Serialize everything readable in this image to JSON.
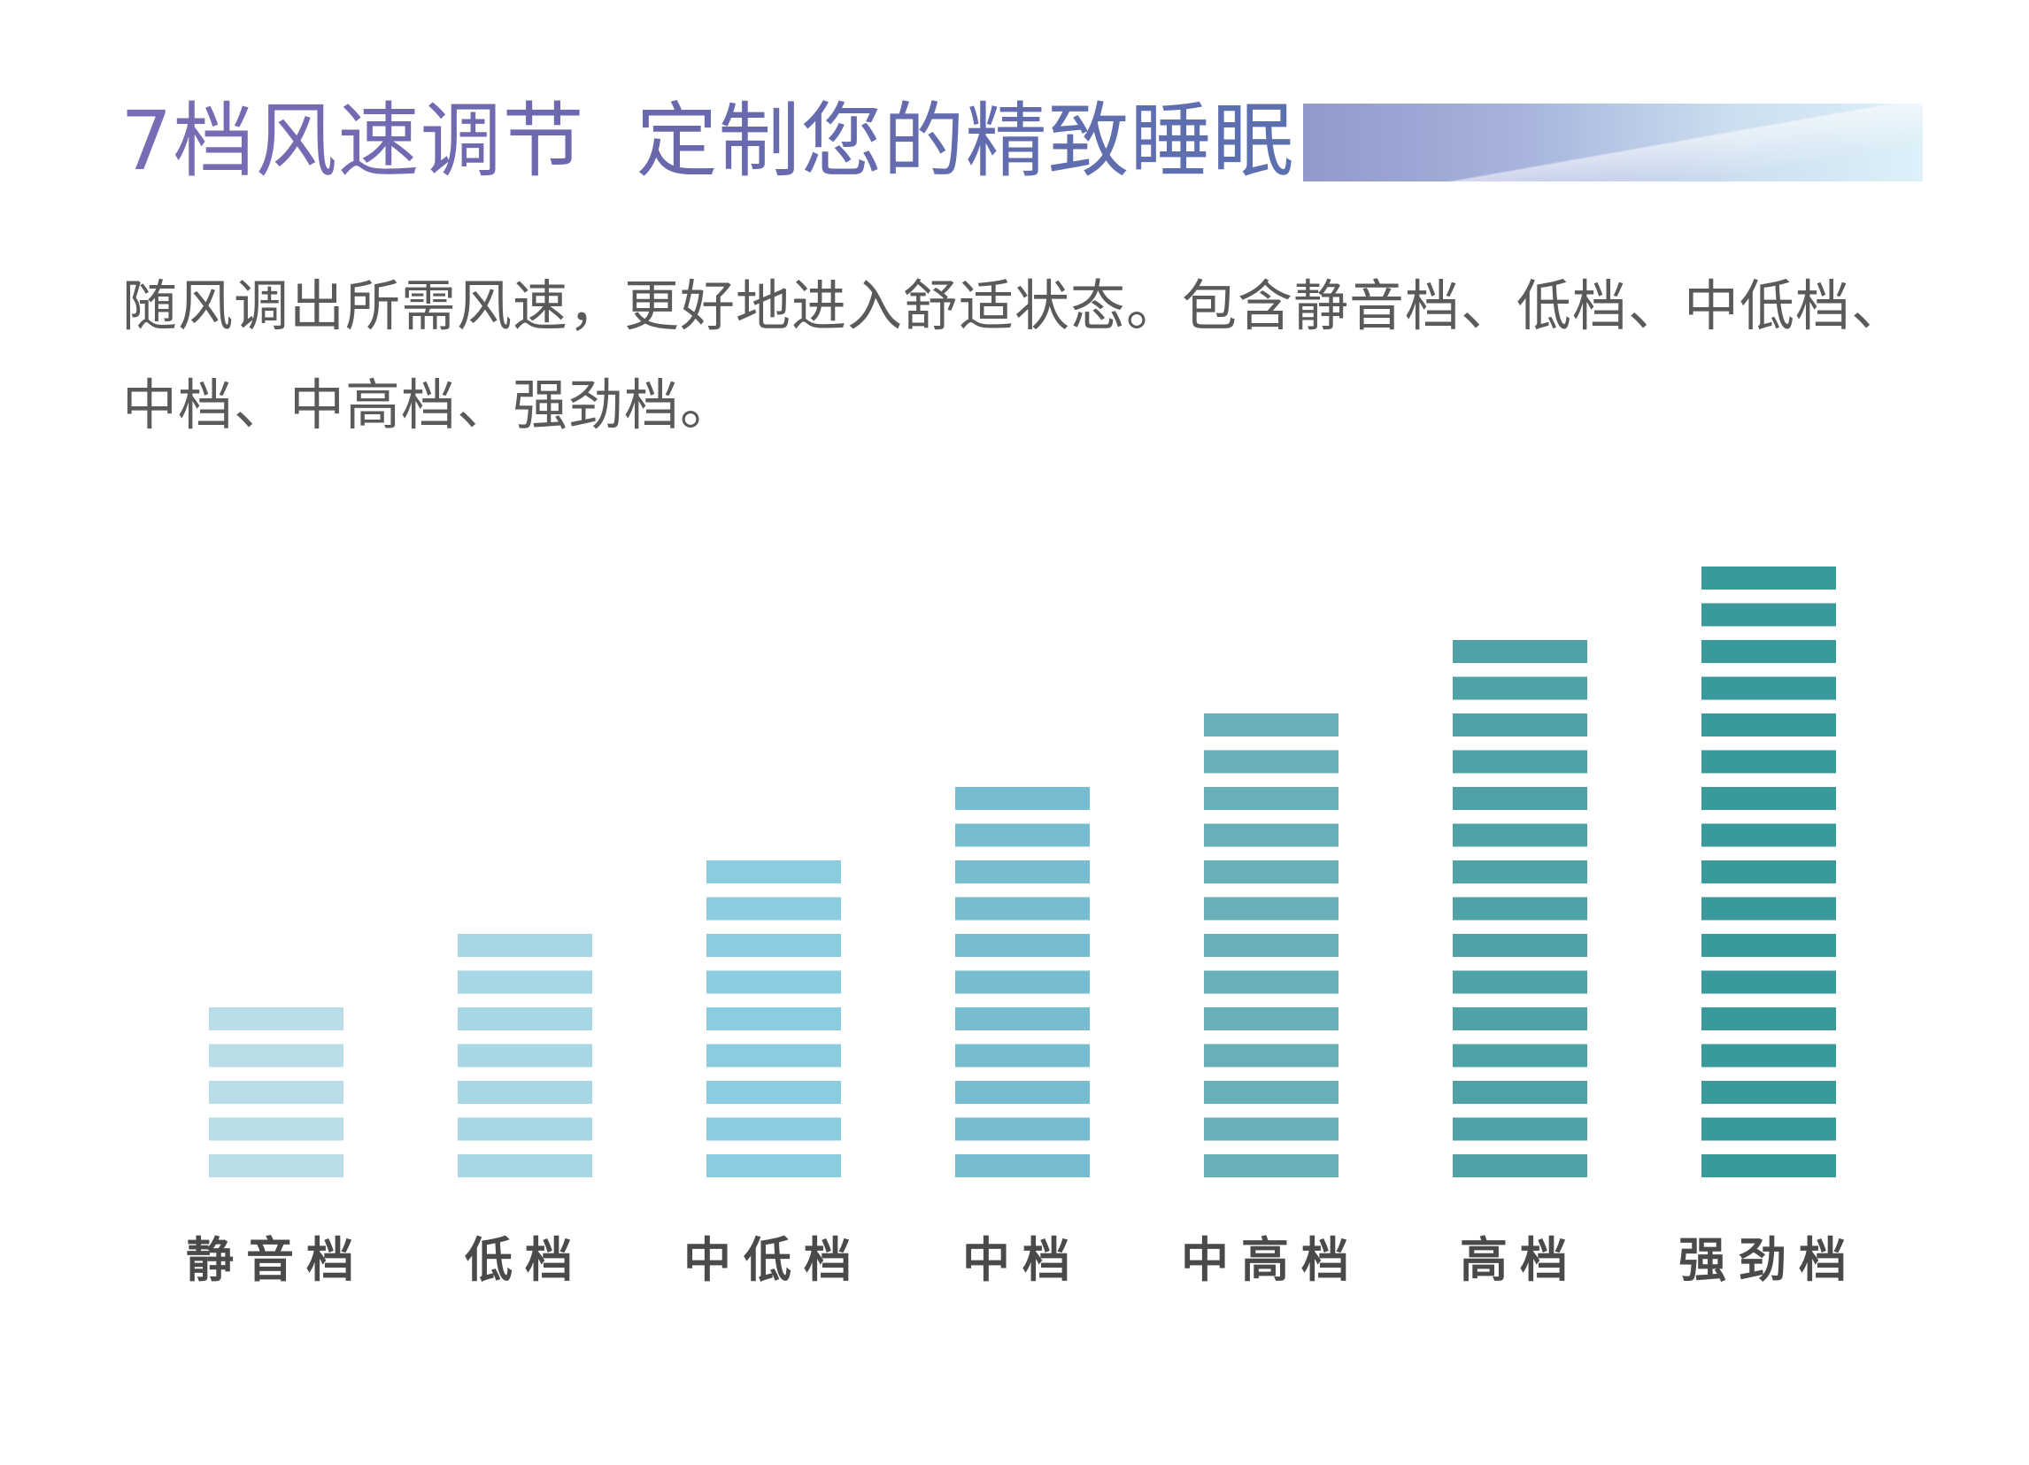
{
  "title": {
    "part1": "7档风速调节",
    "part2": "定制您的精致睡眠"
  },
  "description": "随风调出所需风速，更好地进入舒适状态。包含静音档、低档、中低档、中档、中高档、强劲档。",
  "colors": {
    "title_start": "#7a6cb6",
    "title_end": "#5b70b0",
    "bar_lightest": "#b9dde6",
    "bar_darkest": "#3a9a9b",
    "label": "#4a4a4a"
  },
  "chart_data": {
    "type": "bar",
    "title": "",
    "xlabel": "",
    "ylabel": "",
    "categories": [
      "静音档",
      "低档",
      "中低档",
      "中档",
      "中高档",
      "高档",
      "强劲档"
    ],
    "values": [
      5,
      7,
      9,
      11,
      13,
      15,
      17
    ],
    "ylim": [
      0,
      17
    ],
    "grid": false,
    "legend": "none",
    "bar_colors": [
      "#b9dde6",
      "#a7d6e4",
      "#8dcbe0",
      "#78bccf",
      "#67b0b8",
      "#4fa3a6",
      "#3a9a9b"
    ]
  }
}
